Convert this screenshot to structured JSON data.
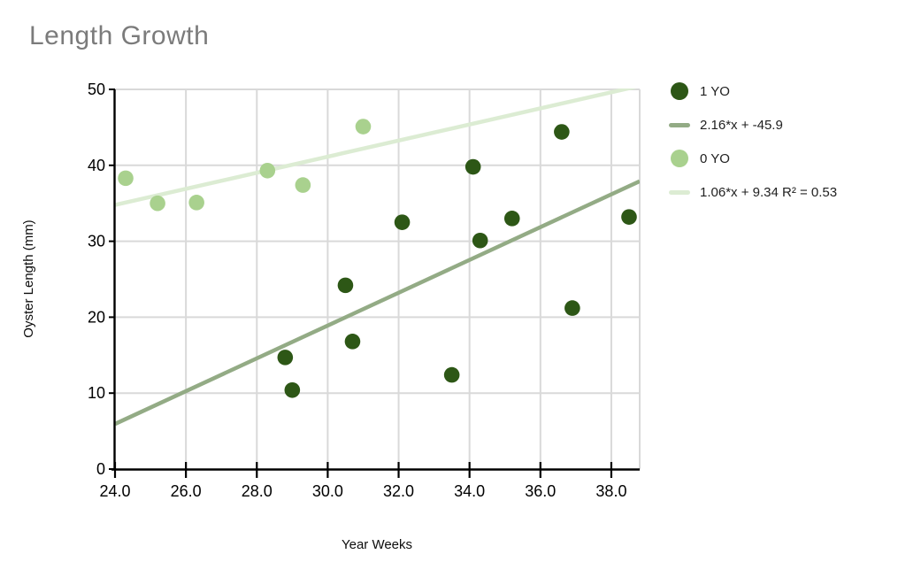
{
  "chart_data": {
    "type": "scatter",
    "title": "Length Growth",
    "xlabel": "Year Weeks",
    "ylabel": "Oyster Length (mm)",
    "xlim": [
      24.0,
      38.8
    ],
    "ylim": [
      0,
      50
    ],
    "xticks": [
      24,
      26,
      28,
      30,
      32,
      34,
      36,
      38
    ],
    "xtick_labels": [
      "24.0",
      "26.0",
      "28.0",
      "30.0",
      "32.0",
      "34.0",
      "36.0",
      "38.0"
    ],
    "yticks": [
      0,
      10,
      20,
      30,
      40,
      50
    ],
    "ytick_labels": [
      "0",
      "10",
      "20",
      "30",
      "40",
      "50"
    ],
    "grid": true,
    "legend_position": "right",
    "series": [
      {
        "name": "1 YO",
        "kind": "scatter",
        "color": "#2d5716",
        "points": [
          [
            28.8,
            14.7
          ],
          [
            29.0,
            10.4
          ],
          [
            30.5,
            24.2
          ],
          [
            30.7,
            16.8
          ],
          [
            32.1,
            32.5
          ],
          [
            33.5,
            12.4
          ],
          [
            34.1,
            39.8
          ],
          [
            34.3,
            30.1
          ],
          [
            35.2,
            33.0
          ],
          [
            36.6,
            44.4
          ],
          [
            36.9,
            21.2
          ],
          [
            38.5,
            33.2
          ]
        ]
      },
      {
        "name": "2.16*x + -45.9",
        "kind": "trendline",
        "color": "#93ab85",
        "slope": 2.16,
        "intercept": -45.9
      },
      {
        "name": "0 YO",
        "kind": "scatter",
        "color": "#a9d18e",
        "points": [
          [
            24.3,
            38.3
          ],
          [
            25.2,
            35.0
          ],
          [
            26.3,
            35.1
          ],
          [
            28.3,
            39.3
          ],
          [
            29.3,
            37.4
          ],
          [
            31.0,
            45.1
          ]
        ]
      },
      {
        "name": "1.06*x + 9.34 R² = 0.53",
        "kind": "trendline",
        "color": "#dcecd3",
        "slope": 1.06,
        "intercept": 9.34
      }
    ],
    "colors": {
      "background": "#ffffff",
      "gridline": "#d9d9d9",
      "axis": "#000000",
      "tick_label": "#000000",
      "title": "#7b7b7b",
      "legend_text": "#212121"
    }
  }
}
